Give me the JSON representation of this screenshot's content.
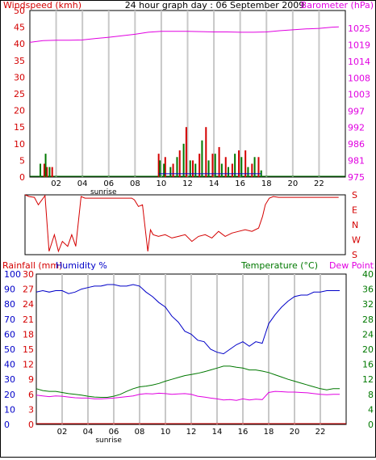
{
  "colors": {
    "red": "#d40000",
    "magenta": "#e100e1",
    "green": "#007800",
    "blue": "#0000c8",
    "grid": "#c8c8c8",
    "gridDark": "#b0b0b0"
  },
  "chart_data": [
    {
      "type": "bar",
      "title": "24 hour graph day : 06 September 2009",
      "ylabel": "Windspeed (kmh)",
      "y2label": "Barometer (hPa)",
      "ylim": [
        0,
        50
      ],
      "y2lim": [
        975,
        1031
      ],
      "yticks": [
        "0",
        "5",
        "10",
        "15",
        "20",
        "25",
        "30",
        "35",
        "40",
        "45",
        "50"
      ],
      "y2ticks": [
        "975",
        "981",
        "986",
        "992",
        "997",
        "1003",
        "1008",
        "1014",
        "1019",
        "1025"
      ],
      "xticks": [
        "02",
        "04",
        "06",
        "08",
        "10",
        "12",
        "14",
        "16",
        "18",
        "20",
        "22"
      ],
      "xlim": [
        0,
        24
      ],
      "sunrise_label": "sunrise",
      "sunrise_hour": 5.6,
      "barometer": {
        "x": [
          0,
          1,
          2,
          3,
          4,
          5,
          6,
          7,
          8,
          9,
          10,
          11,
          12,
          13,
          14,
          15,
          16,
          17,
          18,
          19,
          20,
          21,
          22,
          23,
          23.5
        ],
        "y": [
          1020.3,
          1020.9,
          1021.0,
          1021.0,
          1021.1,
          1021.6,
          1022.0,
          1022.5,
          1023.0,
          1023.7,
          1024.0,
          1024.0,
          1024.0,
          1023.9,
          1023.8,
          1023.8,
          1023.7,
          1023.7,
          1023.8,
          1024.2,
          1024.5,
          1024.8,
          1025.0,
          1025.4,
          1025.5
        ]
      },
      "gust_bars": {
        "x": [
          1.1,
          1.3,
          1.7,
          9.8,
          10.3,
          10.9,
          11.4,
          11.9,
          12.4,
          12.9,
          13.4,
          13.9,
          14.4,
          14.9,
          15.4,
          15.9,
          16.4,
          16.9,
          17.4
        ],
        "y": [
          4,
          3,
          3,
          7,
          6,
          4,
          8,
          15,
          5,
          7,
          15,
          7,
          9,
          6,
          4,
          8,
          8,
          4,
          6
        ]
      },
      "wind_bars": {
        "x": [
          0.8,
          1.2,
          1.5,
          9.9,
          10.2,
          10.7,
          11.2,
          11.7,
          12.2,
          12.6,
          13.1,
          13.6,
          14.1,
          14.6,
          15.1,
          15.6,
          16.1,
          16.6,
          17.1,
          17.6
        ],
        "y": [
          4,
          7,
          3,
          5,
          4,
          3,
          6,
          10,
          5,
          4,
          11,
          5,
          7,
          4,
          3,
          7,
          6,
          3,
          6,
          2
        ]
      }
    },
    {
      "type": "line",
      "ylabels": [
        "S",
        "E",
        "N",
        "W",
        "S"
      ],
      "xlim": [
        0,
        24
      ],
      "direction": {
        "x": [
          0,
          0.3,
          0.7,
          1,
          1.5,
          1.8,
          2.2,
          2.5,
          2.8,
          3.2,
          3.5,
          3.8,
          4.2,
          4.5,
          5,
          6,
          7,
          8,
          8.2,
          8.5,
          8.8,
          9.2,
          9.4,
          9.6,
          10,
          10.5,
          11,
          11.5,
          12,
          12.5,
          13,
          13.5,
          14,
          14.5,
          15,
          15.5,
          16,
          16.5,
          17,
          17.5,
          17.8,
          18,
          18.3,
          18.6,
          19,
          20,
          22,
          23.5
        ],
        "y": [
          180,
          170,
          165,
          120,
          175,
          200,
          300,
          200,
          260,
          230,
          300,
          230,
          170,
          160,
          160,
          160,
          160,
          160,
          150,
          110,
          120,
          200,
          330,
          300,
          290,
          300,
          280,
          290,
          300,
          260,
          290,
          300,
          280,
          320,
          290,
          310,
          320,
          330,
          320,
          340,
          50,
          120,
          160,
          170,
          165,
          165,
          165,
          165
        ]
      }
    },
    {
      "type": "line",
      "ylabel_left1": "Rainfall (mm)",
      "ylabel_left2": "Humidity %",
      "ylabel_right1": "Temperature (°C)",
      "ylabel_right2": "Dew Point",
      "rain_ticks": [
        "0",
        "3",
        "6",
        "9",
        "12",
        "15",
        "18",
        "21",
        "24",
        "27",
        "30"
      ],
      "humidity_ticks": [
        "0",
        "10",
        "20",
        "30",
        "40",
        "50",
        "60",
        "70",
        "80",
        "90",
        "100"
      ],
      "temp_ticks": [
        "0",
        "4",
        "8",
        "12",
        "16",
        "20",
        "24",
        "28",
        "32",
        "36",
        "40"
      ],
      "ylim_temp": [
        0,
        40
      ],
      "ylim_humidity": [
        0,
        100
      ],
      "xticks": [
        "02",
        "04",
        "06",
        "08",
        "10",
        "12",
        "14",
        "16",
        "18",
        "20",
        "22"
      ],
      "sunrise_label": "sunrise",
      "humidity": {
        "x": [
          0,
          0.5,
          1,
          1.5,
          2,
          2.5,
          3,
          3.5,
          4,
          4.5,
          5,
          5.5,
          6,
          6.5,
          7,
          7.5,
          8,
          8.5,
          9,
          9.5,
          10,
          10.5,
          11,
          11.5,
          12,
          12.5,
          13,
          13.5,
          14,
          14.5,
          15,
          15.5,
          16,
          16.5,
          17,
          17.5,
          18,
          18.5,
          19,
          19.5,
          20,
          20.5,
          21,
          21.5,
          22,
          22.5,
          23,
          23.5
        ],
        "y": [
          88,
          89,
          88,
          89,
          89,
          87,
          88,
          90,
          91,
          92,
          92,
          93,
          93,
          92,
          92,
          93,
          92,
          88,
          85,
          81,
          78,
          72,
          68,
          62,
          60,
          56,
          55,
          50,
          48,
          47,
          50,
          53,
          55,
          52,
          55,
          54,
          67,
          73,
          78,
          82,
          85,
          86,
          86,
          88,
          88,
          89,
          89,
          89
        ]
      },
      "temperature": {
        "x": [
          0,
          0.5,
          1,
          1.5,
          2,
          2.5,
          3,
          3.5,
          4,
          4.5,
          5,
          5.5,
          6,
          6.5,
          7,
          7.5,
          8,
          8.5,
          9,
          9.5,
          10,
          10.5,
          11,
          11.5,
          12,
          12.5,
          13,
          13.5,
          14,
          14.5,
          15,
          15.5,
          16,
          16.5,
          17,
          17.5,
          18,
          18.5,
          19,
          19.5,
          20,
          20.5,
          21,
          21.5,
          22,
          22.5,
          23,
          23.5
        ],
        "y": [
          9.5,
          9,
          8.8,
          8.8,
          8.5,
          8.2,
          8.0,
          7.8,
          7.5,
          7.3,
          7.2,
          7.2,
          7.5,
          8.0,
          8.8,
          9.5,
          10.0,
          10.2,
          10.5,
          10.9,
          11.5,
          12.0,
          12.5,
          13.0,
          13.3,
          13.6,
          14.0,
          14.5,
          15.0,
          15.5,
          15.5,
          15.2,
          15.0,
          14.5,
          14.5,
          14.2,
          13.8,
          13.2,
          12.6,
          12.0,
          11.5,
          11.0,
          10.5,
          10.0,
          9.5,
          9.2,
          9.5,
          9.5
        ]
      },
      "dewpoint": {
        "x": [
          0,
          0.5,
          1,
          1.5,
          2,
          2.5,
          3,
          3.5,
          4,
          4.5,
          5,
          5.5,
          6,
          6.5,
          7,
          7.5,
          8,
          8.5,
          9,
          9.5,
          10,
          10.5,
          11,
          11.5,
          12,
          12.5,
          13,
          13.5,
          14,
          14.5,
          15,
          15.5,
          16,
          16.5,
          17,
          17.5,
          18,
          18.5,
          19,
          19.5,
          20,
          20.5,
          21,
          21.5,
          22,
          22.5,
          23,
          23.5
        ],
        "y": [
          7.8,
          7.6,
          7.4,
          7.6,
          7.5,
          7.3,
          7.1,
          7.0,
          7.0,
          6.8,
          6.8,
          6.9,
          7.0,
          7.2,
          7.4,
          7.6,
          8.0,
          8.2,
          8.1,
          8.3,
          8.2,
          8.0,
          8.1,
          8.2,
          8.0,
          7.5,
          7.3,
          7.0,
          6.8,
          6.5,
          6.6,
          6.4,
          6.8,
          6.5,
          6.7,
          6.6,
          8.5,
          8.8,
          8.7,
          8.6,
          8.6,
          8.5,
          8.4,
          8.2,
          8.0,
          7.9,
          8.0,
          8.0
        ]
      }
    }
  ]
}
